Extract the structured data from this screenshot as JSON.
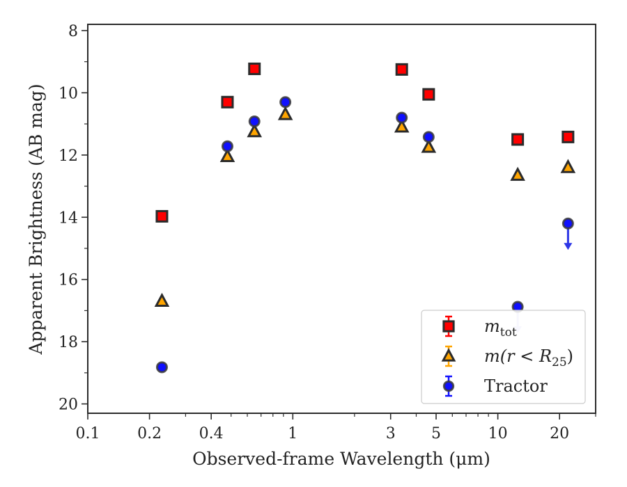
{
  "chart_data": {
    "type": "scatter",
    "xlabel": "Observed-frame Wavelength (μm)",
    "ylabel": "Apparent Brightness (AB mag)",
    "x_scale": "log",
    "xlim": [
      0.1,
      30
    ],
    "ylim": [
      20.3,
      7.8
    ],
    "y_inverted": true,
    "x_ticks": [
      0.1,
      0.2,
      0.4,
      1,
      3,
      5,
      10,
      20
    ],
    "x_tick_labels": [
      "0.1",
      "0.2",
      "0.4",
      "1",
      "3",
      "5",
      "10",
      "20"
    ],
    "y_ticks": [
      8,
      10,
      12,
      14,
      16,
      18,
      20
    ],
    "y_tick_labels": [
      "8",
      "10",
      "12",
      "14",
      "16",
      "18",
      "20"
    ],
    "grid": false,
    "legend_position": "bottom-right",
    "series": [
      {
        "name": "m_tot",
        "legend": {
          "base": "m",
          "sub": "tot"
        },
        "marker": "square",
        "color": "#ff0000",
        "edge": "#2b2b2b",
        "points": [
          {
            "x": 0.23,
            "y": 13.97
          },
          {
            "x": 0.48,
            "y": 10.3
          },
          {
            "x": 0.65,
            "y": 9.23
          },
          {
            "x": 3.4,
            "y": 9.25
          },
          {
            "x": 4.6,
            "y": 10.05
          },
          {
            "x": 12.5,
            "y": 11.5
          },
          {
            "x": 22.0,
            "y": 11.42
          }
        ]
      },
      {
        "name": "m(r < R25)",
        "legend": {
          "pre": "m(r < R",
          "sub": "25",
          "post": ")"
        },
        "marker": "triangle",
        "color": "#ffa500",
        "edge": "#2b2b2b",
        "points": [
          {
            "x": 0.23,
            "y": 16.7
          },
          {
            "x": 0.48,
            "y": 12.05
          },
          {
            "x": 0.65,
            "y": 11.25
          },
          {
            "x": 0.92,
            "y": 10.7
          },
          {
            "x": 3.4,
            "y": 11.1
          },
          {
            "x": 4.6,
            "y": 11.75
          },
          {
            "x": 12.5,
            "y": 12.65
          },
          {
            "x": 22.0,
            "y": 12.4
          }
        ]
      },
      {
        "name": "Tractor",
        "legend": {
          "base": "Tractor"
        },
        "marker": "circle",
        "color": "#1010ff",
        "edge": "#3a3a3a",
        "points": [
          {
            "x": 0.23,
            "y": 18.82
          },
          {
            "x": 0.48,
            "y": 11.72
          },
          {
            "x": 0.65,
            "y": 10.92
          },
          {
            "x": 0.92,
            "y": 10.3
          },
          {
            "x": 3.4,
            "y": 10.8
          },
          {
            "x": 4.6,
            "y": 11.42
          },
          {
            "x": 12.5,
            "y": 16.88,
            "upper_limit": true
          },
          {
            "x": 22.0,
            "y": 14.2,
            "upper_limit": true
          }
        ]
      }
    ]
  }
}
